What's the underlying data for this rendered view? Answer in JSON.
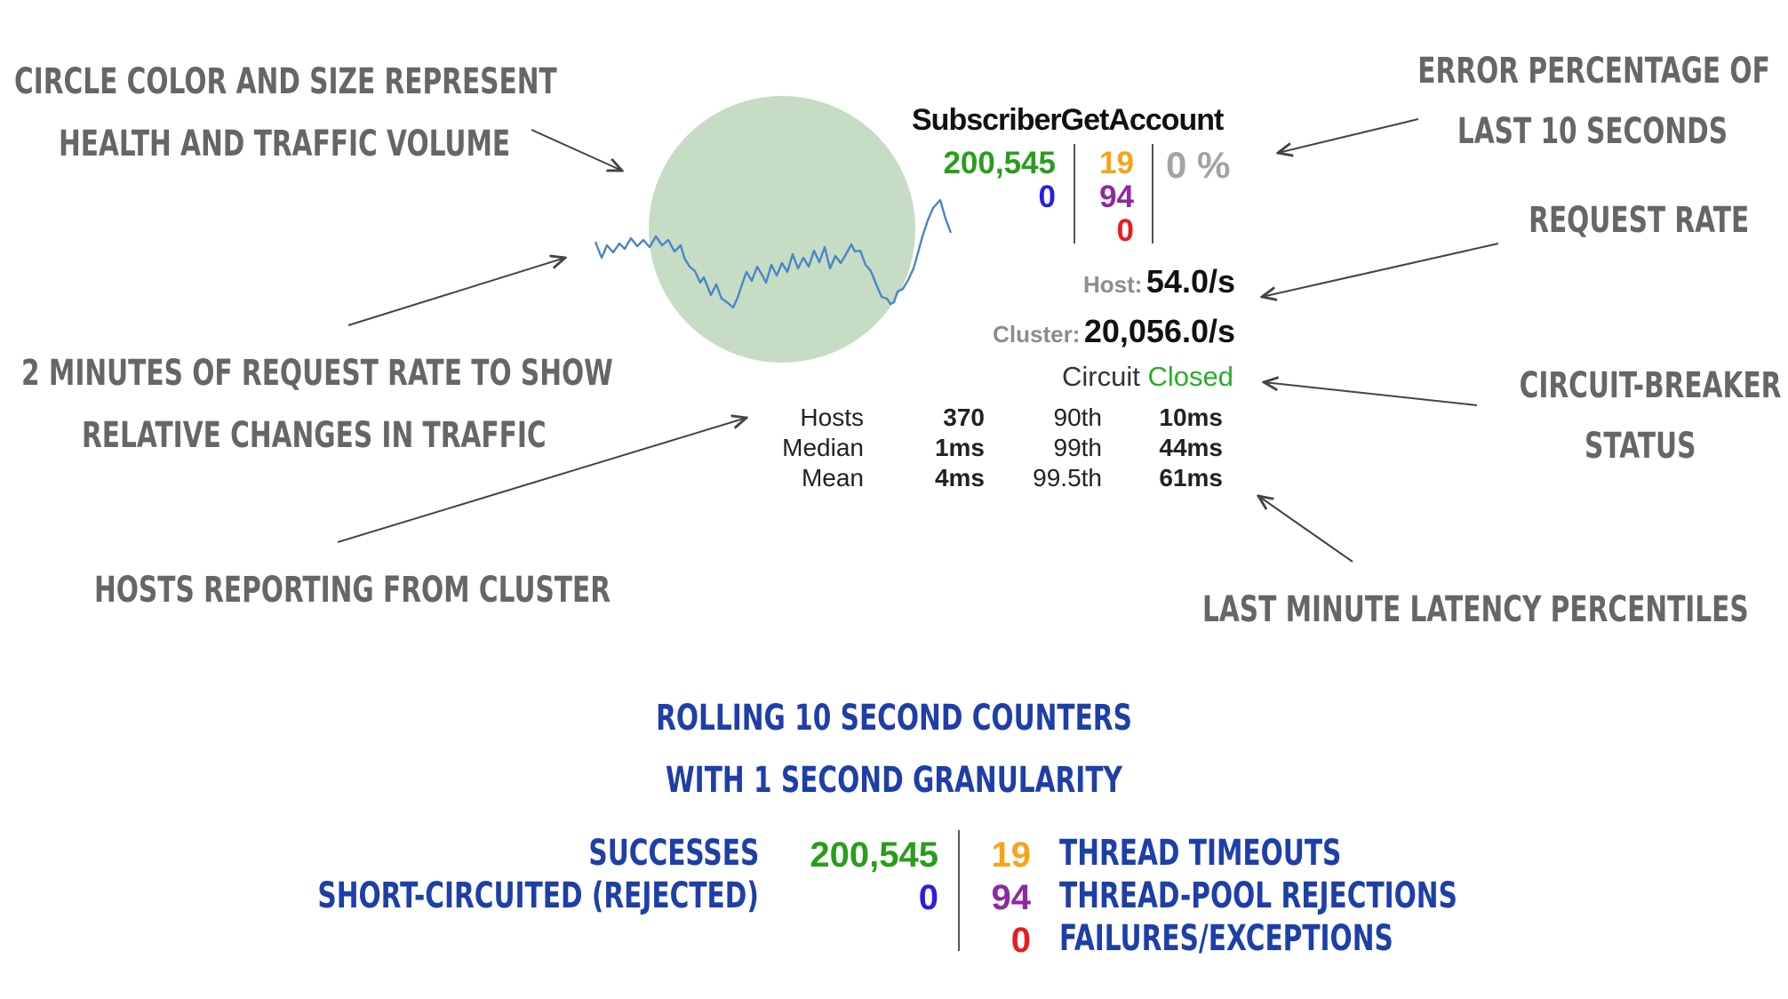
{
  "callouts": {
    "circle": [
      "Circle color and size represent",
      "health and traffic volume"
    ],
    "sparkline": [
      "2 minutes of request rate to show",
      "relative changes in traffic"
    ],
    "hosts": "Hosts reporting from cluster",
    "error": [
      "Error percentage of",
      "last 10 seconds"
    ],
    "rate": "Request rate",
    "breaker": [
      "Circuit-breaker",
      "status"
    ],
    "latency": "Last minute latency percentiles"
  },
  "monitor": {
    "name": "SubscriberGetAccount",
    "counts": {
      "successes": "200,545",
      "short_circuited": "0",
      "timeouts": "19",
      "rejections": "94",
      "failures": "0"
    },
    "error_pct": "0 %",
    "host_label": "Host:",
    "host_rate": "54.0/s",
    "cluster_label": "Cluster:",
    "cluster_rate": "20,056.0/s",
    "circuit_label": "Circuit",
    "circuit_status": "Closed",
    "stats": {
      "hosts_label": "Hosts",
      "hosts_value": "370",
      "median_label": "Median",
      "median_value": "1ms",
      "mean_label": "Mean",
      "mean_value": "4ms",
      "p90_label": "90th",
      "p90_value": "10ms",
      "p99_label": "99th",
      "p99_value": "44ms",
      "p995_label": "99.5th",
      "p995_value": "61ms"
    },
    "colors": {
      "success": "#2a9d1c",
      "short": "#2b1de6",
      "timeout": "#f5a418",
      "rejection": "#8e2aa0",
      "failure": "#e81c1c",
      "error_pct": "#a3a3a3",
      "closed": "#27ae27",
      "circle": "#c7dcc4",
      "sparkline": "#4a86c8"
    }
  },
  "legend": {
    "title": [
      "Rolling 10 second counters",
      "with 1 second granularity"
    ],
    "successes": "Successes",
    "short_circuited": "Short-circuited (rejected)",
    "timeouts": "Thread timeouts",
    "rejections": "Thread-pool rejections",
    "failures": "Failures/Exceptions",
    "values": {
      "successes": "200,545",
      "short_circuited": "0",
      "timeouts": "19",
      "rejections": "94",
      "failures": "0"
    }
  }
}
